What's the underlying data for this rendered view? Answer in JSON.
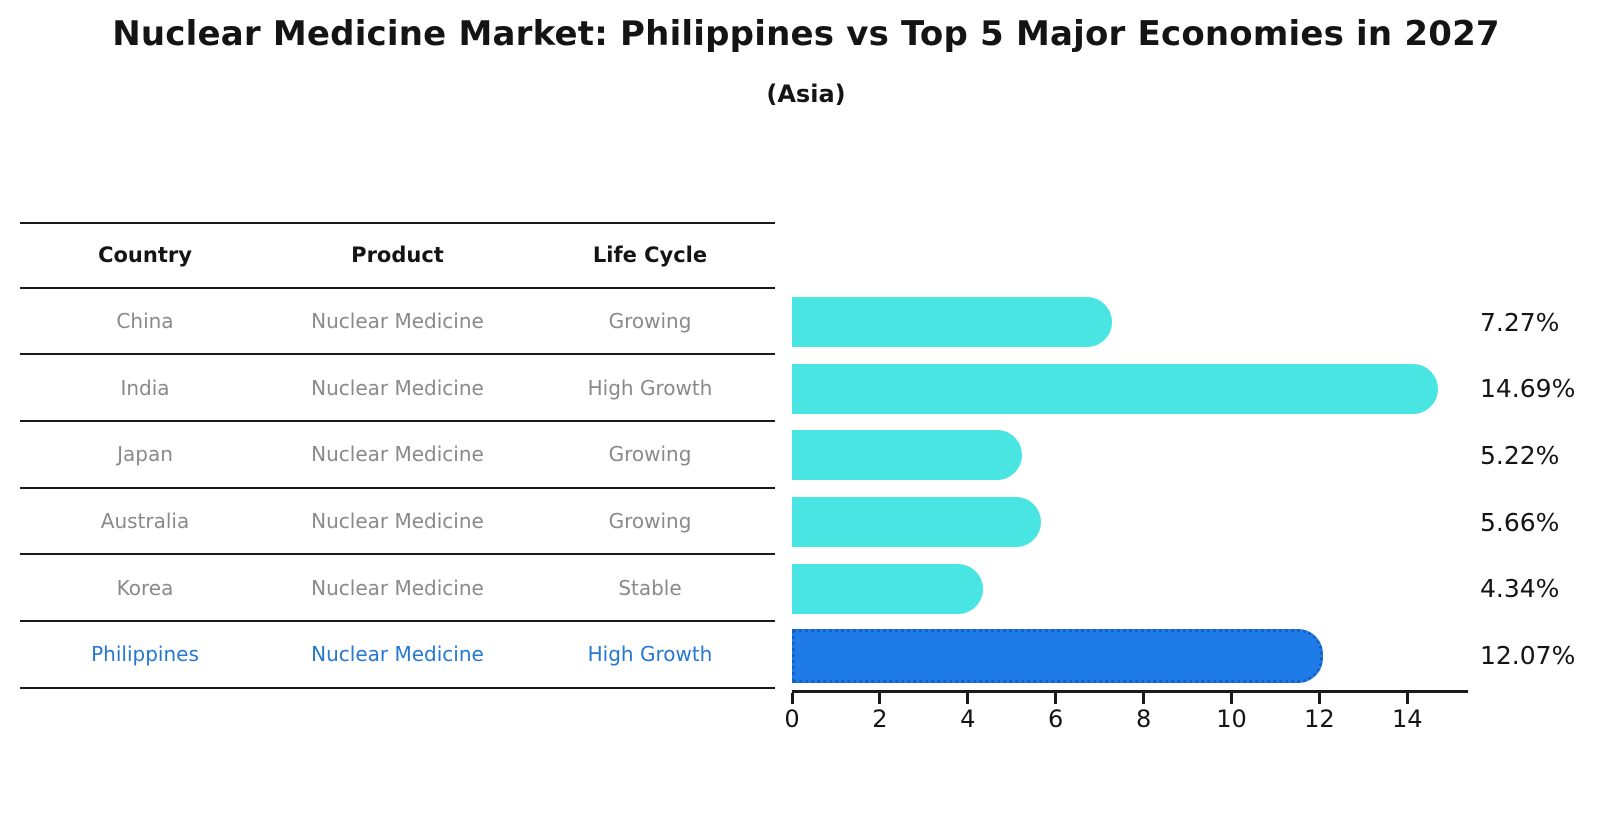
{
  "title": "Nuclear Medicine Market: Philippines vs Top 5 Major Economies in 2027",
  "subtitle": "(Asia)",
  "table": {
    "headers": [
      "Country",
      "Product",
      "Life Cycle"
    ],
    "rows": [
      {
        "country": "China",
        "product": "Nuclear Medicine",
        "life_cycle": "Growing",
        "highlight": false
      },
      {
        "country": "India",
        "product": "Nuclear Medicine",
        "life_cycle": "High Growth",
        "highlight": false
      },
      {
        "country": "Japan",
        "product": "Nuclear Medicine",
        "life_cycle": "Growing",
        "highlight": false
      },
      {
        "country": "Australia",
        "product": "Nuclear Medicine",
        "life_cycle": "Growing",
        "highlight": false
      },
      {
        "country": "Korea",
        "product": "Nuclear Medicine",
        "life_cycle": "Stable",
        "highlight": false
      },
      {
        "country": "Philippines",
        "product": "Nuclear Medicine",
        "life_cycle": "High Growth",
        "highlight": true
      }
    ]
  },
  "chart_data": {
    "type": "bar",
    "orientation": "horizontal",
    "title": "Nuclear Medicine Market: Philippines vs Top 5 Major Economies in 2027",
    "subtitle": "(Asia)",
    "categories": [
      "China",
      "India",
      "Japan",
      "Australia",
      "Korea",
      "Philippines"
    ],
    "values": [
      7.27,
      14.69,
      5.22,
      5.66,
      4.34,
      12.07
    ],
    "value_labels": [
      "7.27%",
      "14.69%",
      "5.22%",
      "5.66%",
      "4.34%",
      "12.07%"
    ],
    "unit": "percent",
    "x_ticks": [
      "0",
      "2",
      "4",
      "6",
      "8",
      "10",
      "12",
      "14"
    ],
    "xlim": [
      0,
      15.4
    ],
    "grid": false,
    "legend": false,
    "highlight_index": 5
  },
  "colors": {
    "bar_cyan": "#48E5E3",
    "bar_blue": "#1E7BE8",
    "highlight_dotted_border": "#1560C8",
    "highlight_text": "#2678D2",
    "muted_text": "#8A8A8A",
    "axis_text": "#141414"
  }
}
